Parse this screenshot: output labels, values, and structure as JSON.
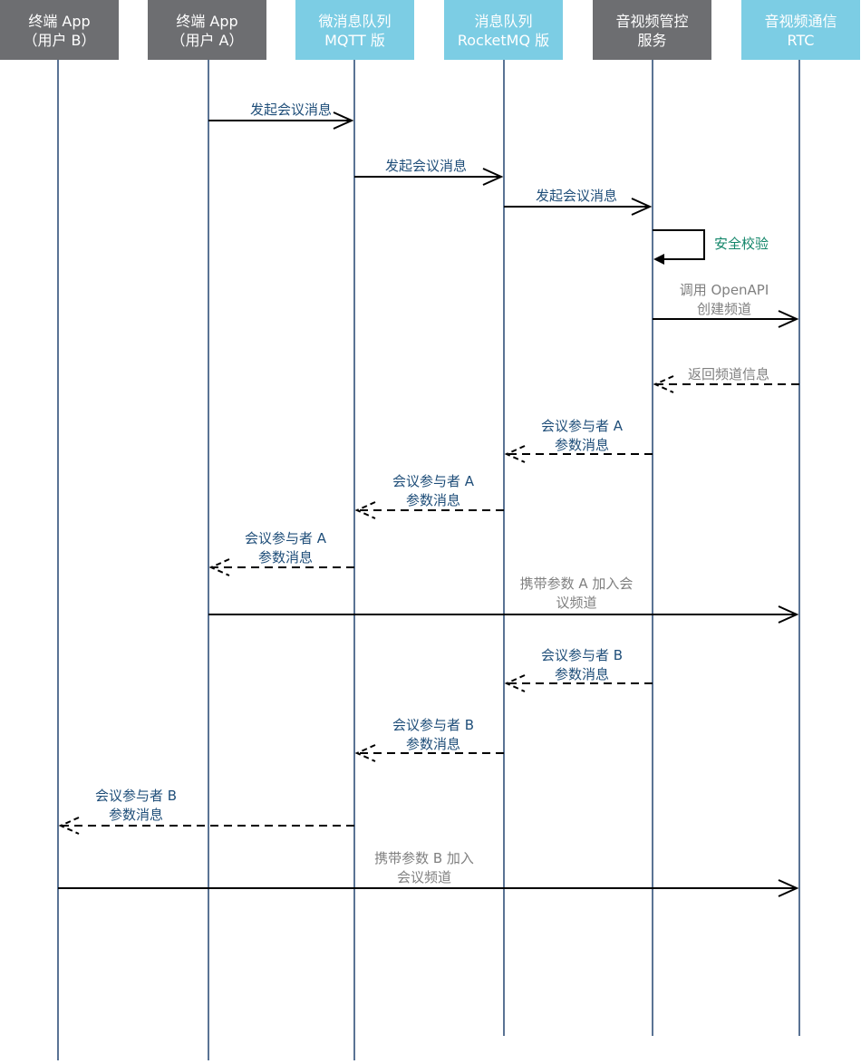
{
  "colors": {
    "header_gray": "#6d6e71",
    "header_blue": "#7ccde4",
    "lifeline": "#5a7394",
    "msg_blue": "#1f4e79",
    "msg_green": "#13866a",
    "msg_gray": "#808080",
    "line": "#000000"
  },
  "participants": [
    {
      "id": "app-b",
      "lines": [
        "终端 App",
        "（用户 B）"
      ],
      "style": "gray"
    },
    {
      "id": "app-a",
      "lines": [
        "终端 App",
        "（用户 A）"
      ],
      "style": "gray"
    },
    {
      "id": "mqtt",
      "lines": [
        "微消息队列",
        "MQTT 版"
      ],
      "style": "blue"
    },
    {
      "id": "rocketmq",
      "lines": [
        "消息队列",
        "RocketMQ 版"
      ],
      "style": "blue"
    },
    {
      "id": "av-control",
      "lines": [
        "音视频管控",
        "服务"
      ],
      "style": "gray"
    },
    {
      "id": "rtc",
      "lines": [
        "音视频通信",
        "RTC"
      ],
      "style": "blue"
    }
  ],
  "messages": [
    {
      "from": 1,
      "to": 2,
      "lines": [
        "发起会议消息"
      ],
      "kind": "solid",
      "color": "blue"
    },
    {
      "from": 2,
      "to": 3,
      "lines": [
        "发起会议消息"
      ],
      "kind": "solid",
      "color": "blue"
    },
    {
      "from": 3,
      "to": 4,
      "lines": [
        "发起会议消息"
      ],
      "kind": "solid",
      "color": "blue"
    },
    {
      "from": 4,
      "to": 4,
      "lines": [
        "安全校验"
      ],
      "kind": "self",
      "color": "green"
    },
    {
      "from": 4,
      "to": 5,
      "lines": [
        "调用 OpenAPI",
        "创建频道"
      ],
      "kind": "solid",
      "color": "gray"
    },
    {
      "from": 5,
      "to": 4,
      "lines": [
        "返回频道信息"
      ],
      "kind": "dashed",
      "color": "gray"
    },
    {
      "from": 4,
      "to": 3,
      "lines": [
        "会议参与者 A",
        "参数消息"
      ],
      "kind": "dashed",
      "color": "blue"
    },
    {
      "from": 3,
      "to": 2,
      "lines": [
        "会议参与者 A",
        "参数消息"
      ],
      "kind": "dashed",
      "color": "blue"
    },
    {
      "from": 2,
      "to": 1,
      "lines": [
        "会议参与者 A",
        "参数消息"
      ],
      "kind": "dashed",
      "color": "blue"
    },
    {
      "from": 1,
      "to": 5,
      "lines": [
        "携带参数 A 加入会",
        "议频道"
      ],
      "kind": "solid",
      "color": "gray"
    },
    {
      "from": 4,
      "to": 3,
      "lines": [
        "会议参与者 B",
        "参数消息"
      ],
      "kind": "dashed",
      "color": "blue"
    },
    {
      "from": 3,
      "to": 2,
      "lines": [
        "会议参与者 B",
        "参数消息"
      ],
      "kind": "dashed",
      "color": "blue"
    },
    {
      "from": 2,
      "to": 0,
      "lines": [
        "会议参与者 B",
        "参数消息"
      ],
      "kind": "dashed",
      "color": "blue"
    },
    {
      "from": 0,
      "to": 5,
      "lines": [
        "携带参数 B 加入",
        "会议频道"
      ],
      "kind": "solid",
      "color": "gray"
    }
  ]
}
